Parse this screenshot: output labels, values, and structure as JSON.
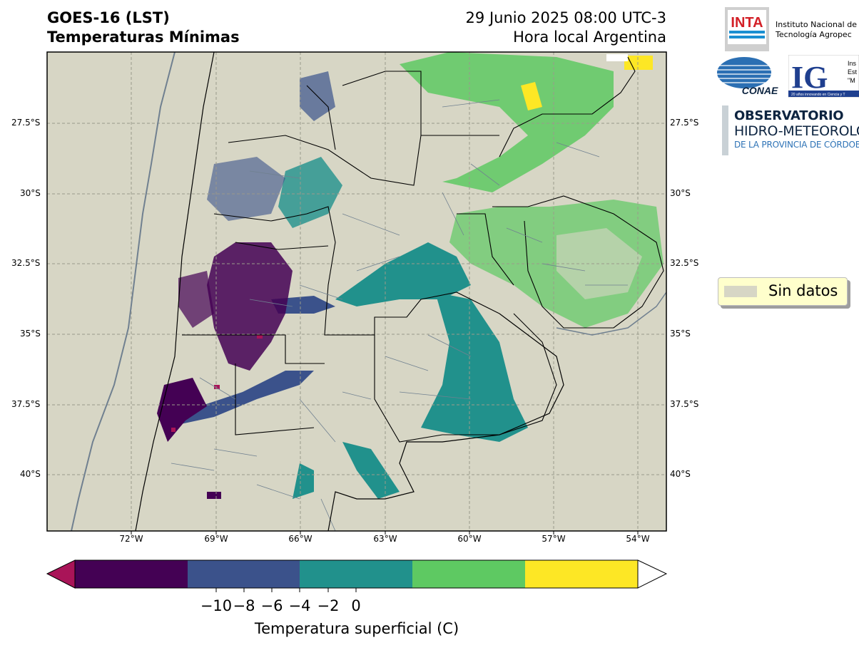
{
  "header": {
    "title_line1": "GOES-16 (LST)",
    "title_line2": "Temperaturas Mínimas",
    "date_line": "29 Junio 2025 08:00 UTC-3",
    "time_note": "Hora local Argentina"
  },
  "map": {
    "lat_labels": [
      "27.5°S",
      "30°S",
      "32.5°S",
      "35°S",
      "37.5°S",
      "40°S"
    ],
    "lon_labels": [
      "72°W",
      "69°W",
      "66°W",
      "63°W",
      "60°W",
      "57°W",
      "54°W"
    ],
    "colors": {
      "no_data": "#d7d6c5",
      "province_border": "#000000",
      "department_border": "#708090",
      "coast": "#708090"
    }
  },
  "colorbar": {
    "ticks": [
      "−10",
      "−8",
      "−6",
      "−4",
      "−2",
      "0"
    ],
    "label": "Temperatura superficial (C)",
    "colors": [
      "#a91458",
      "#440154",
      "#3b528b",
      "#21918c",
      "#5ec962",
      "#fde725",
      "#ffffff"
    ]
  },
  "legend": {
    "label": "Sin datos"
  },
  "logos": {
    "inta": {
      "mark": "INTA",
      "line1": "Instituto Nacional de",
      "line2": "Tecnología Agropec"
    },
    "conae": {
      "mark": "CONAE"
    },
    "ig": {
      "mark": "IG",
      "small1": "Ins",
      "small2": "Est",
      "small3": "\"M",
      "tagline": "20 años innovando en Ciencia y T"
    },
    "observatorio": {
      "line1": "OBSERVATORIO",
      "line2": "HIDRO-METEOROLÓG",
      "line3": "DE LA PROVINCIA DE CÓRDOBA"
    }
  }
}
